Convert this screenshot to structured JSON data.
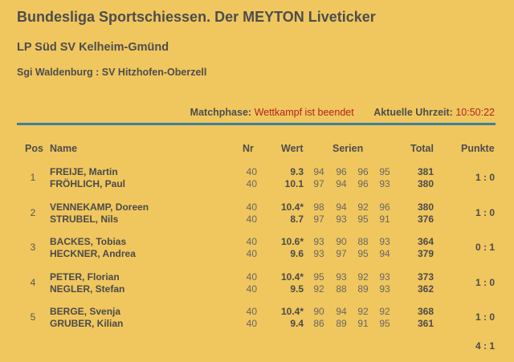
{
  "header": {
    "title": "Bundesliga Sportschiessen. Der MEYTON Liveticker",
    "subtitle": "LP Süd SV Kelheim-Gmünd",
    "match": "Sgi Waldenburg : SV Hitzhofen-Oberzell"
  },
  "status": {
    "phase_label": "Matchphase:",
    "phase_value": "Wettkampf ist beendet",
    "time_label": "Aktuelle Uhrzeit:",
    "time_value": "10:50:22"
  },
  "columns": {
    "pos": "Pos",
    "name": "Name",
    "nr": "Nr",
    "wert": "Wert",
    "serien": "Serien",
    "total": "Total",
    "punkte": "Punkte"
  },
  "rows": [
    {
      "pos": "1",
      "home": {
        "name": "FREIJE, Martin",
        "nr": "40",
        "wert": "9.3",
        "serien": [
          "94",
          "96",
          "96",
          "95"
        ],
        "total": "381"
      },
      "away": {
        "name": "FRÖHLICH, Paul",
        "nr": "40",
        "wert": "10.1",
        "serien": [
          "97",
          "94",
          "96",
          "93"
        ],
        "total": "380"
      },
      "punkte": "1 : 0"
    },
    {
      "pos": "2",
      "home": {
        "name": "VENNEKAMP, Doreen",
        "nr": "40",
        "wert": "10.4*",
        "serien": [
          "98",
          "94",
          "92",
          "96"
        ],
        "total": "380"
      },
      "away": {
        "name": "STRUBEL, Nils",
        "nr": "40",
        "wert": "8.7",
        "serien": [
          "97",
          "93",
          "95",
          "91"
        ],
        "total": "376"
      },
      "punkte": "1 : 0"
    },
    {
      "pos": "3",
      "home": {
        "name": "BACKES, Tobias",
        "nr": "40",
        "wert": "10.6*",
        "serien": [
          "93",
          "90",
          "88",
          "93"
        ],
        "total": "364"
      },
      "away": {
        "name": "HECKNER, Andrea",
        "nr": "40",
        "wert": "9.6",
        "serien": [
          "93",
          "97",
          "95",
          "94"
        ],
        "total": "379"
      },
      "punkte": "0 : 1"
    },
    {
      "pos": "4",
      "home": {
        "name": "PETER, Florian",
        "nr": "40",
        "wert": "10.4*",
        "serien": [
          "95",
          "93",
          "92",
          "93"
        ],
        "total": "373"
      },
      "away": {
        "name": "NEGLER, Stefan",
        "nr": "40",
        "wert": "9.5",
        "serien": [
          "92",
          "88",
          "89",
          "93"
        ],
        "total": "362"
      },
      "punkte": "1 : 0"
    },
    {
      "pos": "5",
      "home": {
        "name": "BERGE, Svenja",
        "nr": "40",
        "wert": "10.4*",
        "serien": [
          "90",
          "94",
          "92",
          "92"
        ],
        "total": "368"
      },
      "away": {
        "name": "GRUBER, Kilian",
        "nr": "40",
        "wert": "9.4",
        "serien": [
          "86",
          "89",
          "91",
          "95"
        ],
        "total": "361"
      },
      "punkte": "1 : 0"
    }
  ],
  "final_score": "4 : 1",
  "colors": {
    "background": "#f0c75e",
    "rule": "#3d7f9e",
    "status_value": "#b22222"
  }
}
